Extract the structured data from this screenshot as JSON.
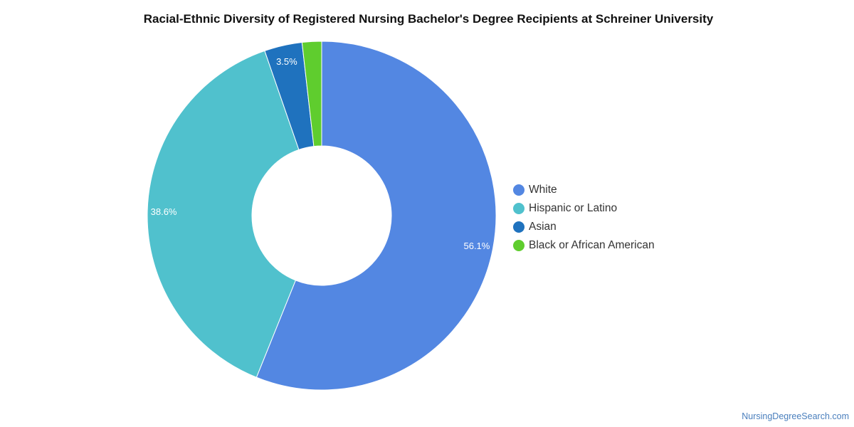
{
  "chart_data": {
    "type": "pie",
    "variant": "donut",
    "title": "Racial-Ethnic Diversity of Registered Nursing Bachelor's Degree Recipients at Schreiner University",
    "slices": [
      {
        "label": "White",
        "value": 56.1,
        "display": "56.1%",
        "color": "#5387e2"
      },
      {
        "label": "Hispanic or Latino",
        "value": 38.6,
        "display": "38.6%",
        "color": "#50c1cd"
      },
      {
        "label": "Asian",
        "value": 3.5,
        "display": "3.5%",
        "color": "#1f72be"
      },
      {
        "label": "Black or African American",
        "value": 1.8,
        "display": "",
        "color": "#5fcd2e"
      }
    ],
    "legend_position": "right"
  },
  "watermark": "NursingDegreeSearch.com"
}
